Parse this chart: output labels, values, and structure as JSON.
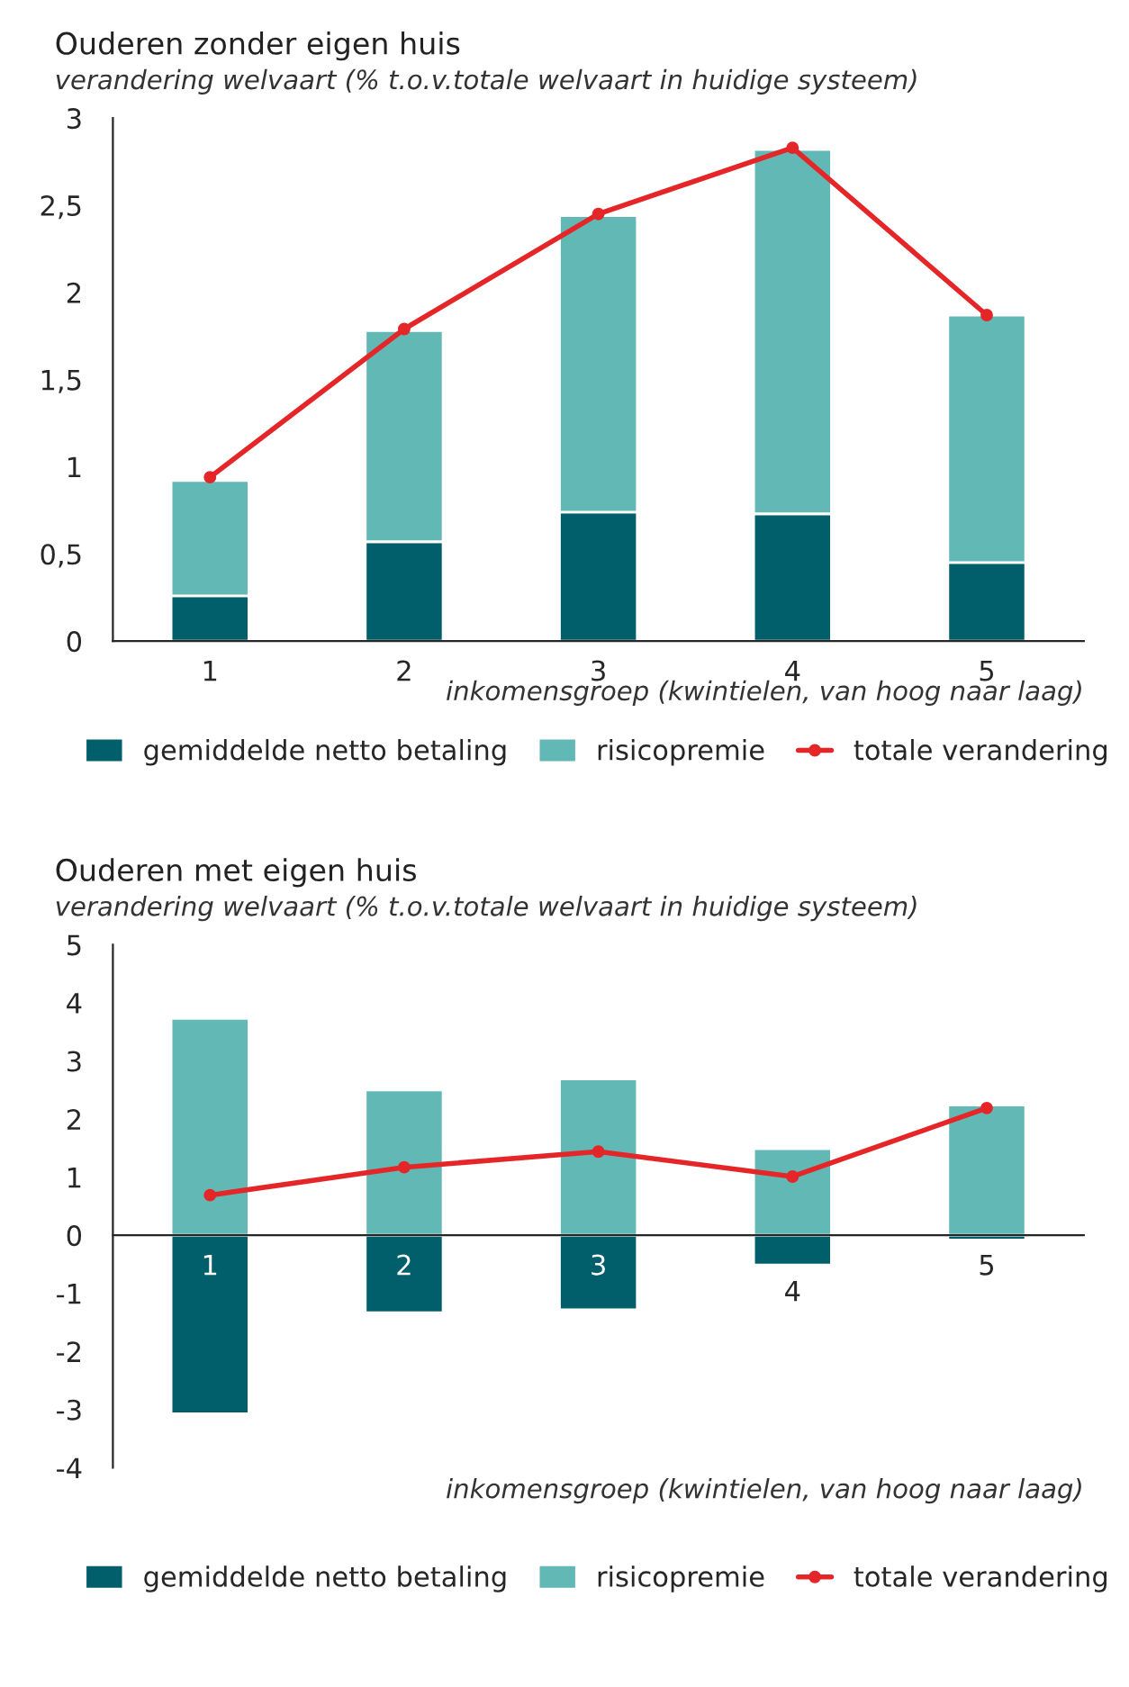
{
  "chart_data": [
    {
      "type": "bar",
      "title": "Ouderen zonder eigen huis",
      "subtitle": "verandering welvaart (% t.o.v.totale welvaart in huidige systeem)",
      "xlabel": "inkomensgroep (kwintielen, van hoog naar laag)",
      "categories": [
        "1",
        "2",
        "3",
        "4",
        "5"
      ],
      "stacked": true,
      "legend": "bottom",
      "grid": false,
      "series": [
        {
          "name": "gemiddelde netto betaling",
          "color": "#005f6b",
          "values": [
            0.26,
            0.57,
            0.74,
            0.73,
            0.45
          ]
        },
        {
          "name": "risicopremie",
          "color": "#62b8b5",
          "values": [
            0.66,
            1.21,
            1.7,
            2.09,
            1.42
          ]
        },
        {
          "name": "totale verandering",
          "type": "line",
          "color": "#e52629",
          "marker": "circle",
          "values": [
            0.94,
            1.79,
            2.45,
            2.83,
            1.87
          ]
        }
      ],
      "ylim": [
        0,
        3
      ],
      "yticks": [
        0,
        {
          "value": 0.5,
          "label": "0,5"
        },
        1,
        {
          "value": 1.5,
          "label": "1,5"
        },
        2,
        {
          "value": 2.5,
          "label": "2,5"
        },
        3
      ]
    },
    {
      "type": "bar",
      "title": "Ouderen met eigen huis",
      "subtitle": "verandering welvaart (% t.o.v.totale welvaart in huidige systeem)",
      "xlabel": "inkomensgroep (kwintielen, van hoog naar laag)",
      "categories": [
        "1",
        "2",
        "3",
        "4",
        "5"
      ],
      "stacked": true,
      "legend": "bottom",
      "grid": false,
      "series": [
        {
          "name": "gemiddelde netto betaling",
          "color": "#005f6b",
          "values": [
            -3.07,
            -1.33,
            -1.28,
            -0.51,
            -0.08
          ]
        },
        {
          "name": "risicopremie",
          "color": "#62b8b5",
          "values": [
            3.73,
            2.5,
            2.69,
            1.49,
            2.24
          ]
        },
        {
          "name": "totale verandering",
          "type": "line",
          "color": "#e52629",
          "marker": "circle",
          "values": [
            0.69,
            1.17,
            1.44,
            1.01,
            2.19
          ]
        }
      ],
      "ylim": [
        -4,
        5
      ],
      "yticks": [
        {
          "value": -4,
          "label": "-4"
        },
        {
          "value": -3,
          "label": "-3"
        },
        {
          "value": -2,
          "label": "-2"
        },
        {
          "value": -1,
          "label": "-1"
        },
        0,
        1,
        2,
        3,
        4,
        5
      ]
    }
  ]
}
